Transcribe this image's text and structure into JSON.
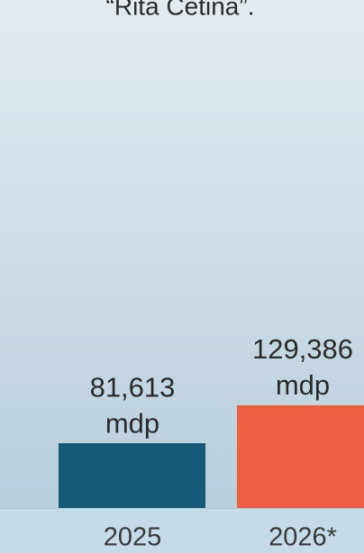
{
  "chart_data": {
    "type": "bar",
    "title": "“Rita Cetina”.",
    "categories": [
      "2025",
      "2026*"
    ],
    "values": [
      81613,
      129386
    ],
    "value_labels": [
      [
        "81,613",
        "mdp"
      ],
      [
        "129,386",
        "mdp"
      ]
    ],
    "colors": [
      "#155b79",
      "#ee5e41"
    ]
  }
}
